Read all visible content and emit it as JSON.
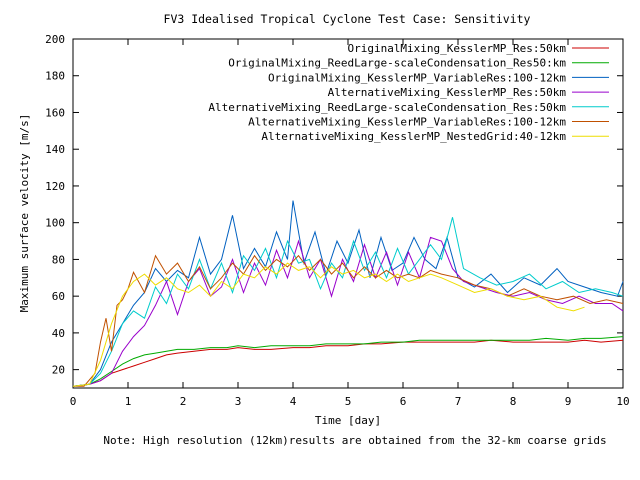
{
  "chart_data": {
    "type": "line",
    "title": "FV3 Idealised Tropical Cyclone Test Case: Sensitivity",
    "xlabel": "Time [day]",
    "ylabel": "Maximum surface velocity [m/s]",
    "note": "Note: High resolution (12km)results are obtained from the 32-km coarse grids",
    "xlim": [
      0,
      10
    ],
    "ylim": [
      10,
      200
    ],
    "xticks": [
      0,
      1,
      2,
      3,
      4,
      5,
      6,
      7,
      8,
      9,
      10
    ],
    "yticks": [
      20,
      40,
      60,
      80,
      100,
      120,
      140,
      160,
      180,
      200
    ],
    "grid": false,
    "legend_position": "top-right",
    "series": [
      {
        "name": "OriginalMixing_KesslerMP_Res:50km",
        "color": "#cc0000",
        "x": [
          0,
          0.3,
          0.5,
          0.7,
          0.9,
          1.1,
          1.3,
          1.5,
          1.7,
          1.9,
          2.2,
          2.5,
          2.8,
          3.0,
          3.3,
          3.6,
          4.0,
          4.3,
          4.6,
          5.0,
          5.3,
          5.6,
          6.0,
          6.3,
          6.6,
          7.0,
          7.3,
          7.6,
          8.0,
          8.3,
          8.6,
          9.0,
          9.3,
          9.6,
          10.0
        ],
        "y": [
          11,
          12,
          14,
          18,
          20,
          22,
          24,
          26,
          28,
          29,
          30,
          31,
          31,
          32,
          31,
          31,
          32,
          32,
          33,
          33,
          34,
          34,
          35,
          35,
          35,
          35,
          35,
          36,
          35,
          35,
          35,
          35,
          36,
          35,
          36
        ]
      },
      {
        "name": "OriginalMixing_ReedLarge-scaleCondensation_Res50:km",
        "color": "#00aa00",
        "x": [
          0,
          0.3,
          0.5,
          0.7,
          0.9,
          1.1,
          1.3,
          1.5,
          1.7,
          1.9,
          2.2,
          2.5,
          2.8,
          3.0,
          3.3,
          3.6,
          4.0,
          4.3,
          4.6,
          5.0,
          5.3,
          5.6,
          6.0,
          6.3,
          6.6,
          7.0,
          7.3,
          7.6,
          8.0,
          8.3,
          8.6,
          9.0,
          9.3,
          9.6,
          10.0
        ],
        "y": [
          11,
          12,
          15,
          19,
          23,
          26,
          28,
          29,
          30,
          31,
          31,
          32,
          32,
          33,
          32,
          33,
          33,
          33,
          34,
          34,
          34,
          35,
          35,
          36,
          36,
          36,
          36,
          36,
          36,
          36,
          37,
          36,
          37,
          37,
          38
        ]
      },
      {
        "name": "OriginalMixing_KesslerMP_VariableRes:100-12km",
        "color": "#0060c0",
        "x": [
          0,
          0.3,
          0.5,
          0.7,
          0.9,
          1.1,
          1.3,
          1.5,
          1.7,
          1.9,
          2.1,
          2.3,
          2.5,
          2.7,
          2.9,
          3.1,
          3.3,
          3.5,
          3.7,
          3.9,
          4.0,
          4.2,
          4.4,
          4.6,
          4.8,
          5.0,
          5.2,
          5.4,
          5.6,
          5.8,
          6.0,
          6.2,
          6.4,
          6.6,
          6.8,
          7.0,
          7.3,
          7.6,
          7.9,
          8.2,
          8.5,
          8.8,
          9.0,
          9.3,
          9.6,
          9.9,
          10.0
        ],
        "y": [
          11,
          12,
          20,
          35,
          45,
          55,
          62,
          75,
          68,
          74,
          70,
          92,
          72,
          80,
          104,
          75,
          86,
          76,
          95,
          80,
          112,
          78,
          95,
          72,
          90,
          78,
          96,
          70,
          92,
          74,
          78,
          92,
          80,
          75,
          92,
          70,
          65,
          72,
          62,
          70,
          66,
          75,
          68,
          65,
          62,
          60,
          68
        ]
      },
      {
        "name": "AlternativeMixing_KesslerMP_Res:50km",
        "color": "#9900cc",
        "x": [
          0,
          0.3,
          0.5,
          0.7,
          0.9,
          1.1,
          1.3,
          1.5,
          1.7,
          1.9,
          2.1,
          2.3,
          2.5,
          2.7,
          2.9,
          3.1,
          3.3,
          3.5,
          3.7,
          3.9,
          4.1,
          4.3,
          4.5,
          4.7,
          4.9,
          5.1,
          5.3,
          5.5,
          5.7,
          5.9,
          6.1,
          6.3,
          6.5,
          6.7,
          6.9,
          7.1,
          7.4,
          7.7,
          8.0,
          8.3,
          8.6,
          8.9,
          9.2,
          9.5,
          9.8,
          10.0
        ],
        "y": [
          11,
          12,
          14,
          18,
          30,
          38,
          44,
          55,
          68,
          50,
          68,
          75,
          60,
          65,
          80,
          62,
          78,
          66,
          85,
          70,
          90,
          70,
          80,
          60,
          80,
          68,
          88,
          70,
          84,
          66,
          84,
          70,
          92,
          90,
          75,
          68,
          65,
          62,
          60,
          62,
          58,
          56,
          60,
          56,
          56,
          52
        ]
      },
      {
        "name": "AlternativeMixing_ReedLarge-scaleCondensation_Res:50km",
        "color": "#00cccc",
        "x": [
          0,
          0.3,
          0.5,
          0.7,
          0.9,
          1.1,
          1.3,
          1.5,
          1.7,
          1.9,
          2.1,
          2.3,
          2.5,
          2.7,
          2.9,
          3.1,
          3.3,
          3.5,
          3.7,
          3.9,
          4.1,
          4.3,
          4.5,
          4.7,
          4.9,
          5.1,
          5.3,
          5.5,
          5.7,
          5.9,
          6.1,
          6.3,
          6.5,
          6.7,
          6.9,
          7.1,
          7.4,
          7.7,
          8.0,
          8.3,
          8.6,
          8.9,
          9.2,
          9.5,
          9.8,
          10.0
        ],
        "y": [
          11,
          12,
          18,
          30,
          45,
          52,
          48,
          65,
          56,
          72,
          64,
          80,
          64,
          78,
          62,
          82,
          74,
          86,
          70,
          90,
          78,
          80,
          64,
          78,
          70,
          90,
          74,
          84,
          70,
          86,
          72,
          80,
          88,
          80,
          103,
          75,
          70,
          66,
          68,
          72,
          64,
          68,
          62,
          64,
          62,
          60
        ]
      },
      {
        "name": "AlternativeMixing_KesslerMP_VariableRes:100-12km",
        "color": "#c05000",
        "x": [
          0,
          0.2,
          0.4,
          0.5,
          0.6,
          0.7,
          0.8,
          0.9,
          1.0,
          1.1,
          1.3,
          1.5,
          1.7,
          1.9,
          2.1,
          2.3,
          2.5,
          2.7,
          2.9,
          3.1,
          3.3,
          3.5,
          3.7,
          3.9,
          4.1,
          4.3,
          4.5,
          4.7,
          4.9,
          5.1,
          5.3,
          5.5,
          5.7,
          5.9,
          6.1,
          6.3,
          6.5,
          6.7,
          7.0,
          7.3,
          7.6,
          7.9,
          8.2,
          8.5,
          8.8,
          9.1,
          9.4,
          9.7,
          10.0
        ],
        "y": [
          11,
          11,
          18,
          35,
          48,
          30,
          55,
          58,
          64,
          73,
          62,
          82,
          72,
          78,
          68,
          76,
          64,
          70,
          78,
          72,
          82,
          74,
          80,
          76,
          82,
          74,
          80,
          72,
          78,
          70,
          76,
          70,
          74,
          70,
          72,
          70,
          74,
          72,
          70,
          66,
          64,
          60,
          64,
          60,
          58,
          60,
          56,
          58,
          56
        ]
      },
      {
        "name": "AlternativeMixing_KesslerMP_NestedGrid:40-12km",
        "color": "#eedd00",
        "x": [
          0,
          0.3,
          0.5,
          0.7,
          0.9,
          1.1,
          1.3,
          1.5,
          1.7,
          1.9,
          2.1,
          2.3,
          2.5,
          2.7,
          2.9,
          3.1,
          3.3,
          3.5,
          3.7,
          3.9,
          4.1,
          4.3,
          4.5,
          4.7,
          4.9,
          5.1,
          5.3,
          5.5,
          5.7,
          5.9,
          6.1,
          6.3,
          6.5,
          6.7,
          7.0,
          7.3,
          7.6,
          7.9,
          8.2,
          8.5,
          8.8,
          9.1,
          9.3
        ],
        "y": [
          11,
          12,
          25,
          45,
          60,
          68,
          72,
          66,
          70,
          64,
          62,
          66,
          60,
          68,
          64,
          72,
          70,
          76,
          72,
          78,
          74,
          76,
          70,
          76,
          72,
          74,
          70,
          72,
          68,
          72,
          68,
          70,
          72,
          70,
          66,
          62,
          64,
          60,
          58,
          60,
          54,
          52,
          54
        ]
      }
    ]
  }
}
